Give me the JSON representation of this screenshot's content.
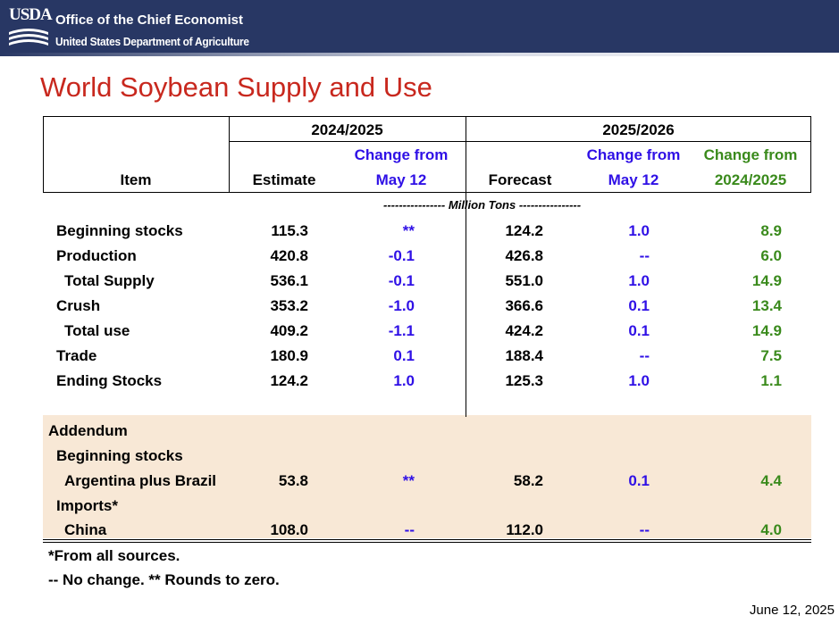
{
  "header": {
    "logo_text": "USDA",
    "agency": "Office of the Chief Economist",
    "department": "United States Department of Agriculture"
  },
  "title": "World Soybean Supply and Use",
  "table": {
    "year_prev": "2024/2025",
    "year_curr": "2025/2026",
    "col_item": "Item",
    "col_estimate": "Estimate",
    "col_change_may_l1": "Change from",
    "col_change_may_l2": "May 12",
    "col_forecast": "Forecast",
    "col_change_may2_l1": "Change from",
    "col_change_may2_l2": "May 12",
    "col_change_year_l1": "Change from",
    "col_change_year_l2": "2024/2025",
    "units": "---------------- Million Tons ----------------",
    "rows": [
      {
        "item": "Beginning stocks",
        "estimate": "115.3",
        "chg_prev": "**",
        "forecast": "124.2",
        "chg_may": "1.0",
        "chg_year": "8.9"
      },
      {
        "item": "Production",
        "estimate": "420.8",
        "chg_prev": "-0.1",
        "forecast": "426.8",
        "chg_may": "--",
        "chg_year": "6.0"
      },
      {
        "item": "Total Supply",
        "estimate": "536.1",
        "chg_prev": "-0.1",
        "forecast": "551.0",
        "chg_may": "1.0",
        "chg_year": "14.9"
      },
      {
        "item": "Crush",
        "estimate": "353.2",
        "chg_prev": "-1.0",
        "forecast": "366.6",
        "chg_may": "0.1",
        "chg_year": "13.4"
      },
      {
        "item": "Total use",
        "estimate": "409.2",
        "chg_prev": "-1.1",
        "forecast": "424.2",
        "chg_may": "0.1",
        "chg_year": "14.9"
      },
      {
        "item": "Trade",
        "estimate": "180.9",
        "chg_prev": "0.1",
        "forecast": "188.4",
        "chg_may": "--",
        "chg_year": "7.5"
      },
      {
        "item": "Ending Stocks",
        "estimate": "124.2",
        "chg_prev": "1.0",
        "forecast": "125.3",
        "chg_may": "1.0",
        "chg_year": "1.1"
      }
    ],
    "addendum": {
      "label": "Addendum",
      "beg_stocks_label": "Beginning stocks",
      "argbra": {
        "item": "Argentina plus Brazil",
        "estimate": "53.8",
        "chg_prev": "**",
        "forecast": "58.2",
        "chg_may": "0.1",
        "chg_year": "4.4"
      },
      "imports_label": "Imports*",
      "china": {
        "item": "China",
        "estimate": "108.0",
        "chg_prev": "--",
        "forecast": "112.0",
        "chg_may": "--",
        "chg_year": "4.0"
      }
    }
  },
  "footnotes": {
    "line1": "*From all sources.",
    "line2": "-- No change.  ** Rounds to zero."
  },
  "date": "June 12, 2025"
}
